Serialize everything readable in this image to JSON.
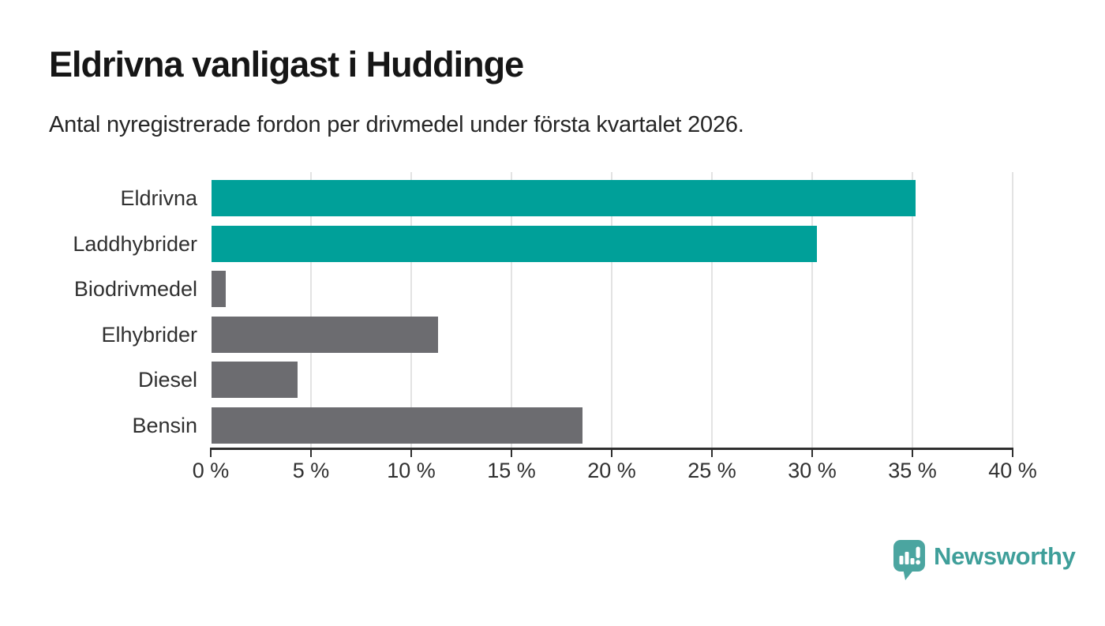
{
  "header": {
    "title": "Eldrivna vanligast i Huddinge",
    "subtitle": "Antal nyregistrerade fordon per drivmedel under första kvartalet 2026."
  },
  "chart_data": {
    "type": "bar",
    "orientation": "horizontal",
    "title": "Eldrivna vanligast i Huddinge",
    "subtitle": "Antal nyregistrerade fordon per drivmedel under första kvartalet 2026.",
    "categories": [
      "Eldrivna",
      "Laddhybrider",
      "Biodrivmedel",
      "Elhybrider",
      "Diesel",
      "Bensin"
    ],
    "values": [
      35.1,
      30.2,
      0.7,
      11.3,
      4.3,
      18.5
    ],
    "unit": "%",
    "bar_color_keys": [
      "teal",
      "teal",
      "gray",
      "gray",
      "gray",
      "gray"
    ],
    "colors": {
      "teal": "#00a099",
      "gray": "#6c6c70",
      "axis": "#2f2f2f",
      "grid": "#e3e3e3",
      "text": "#303030"
    },
    "xlabel": "",
    "ylabel": "",
    "xlim": [
      0,
      40
    ],
    "xticks": [
      0,
      5,
      10,
      15,
      20,
      25,
      30,
      35,
      40
    ],
    "xtick_labels": [
      "0 %",
      "5 %",
      "10 %",
      "15 %",
      "20 %",
      "25 %",
      "30 %",
      "35 %",
      "40 %"
    ],
    "grid": "vertical-only",
    "legend": "none"
  },
  "footer": {
    "brand": "Newsworthy",
    "brand_text_color": "#3f9f9a",
    "logo_mark_color": "#4ba5a0",
    "logo_icon": "newsworthy-pin-barchart-icon"
  }
}
